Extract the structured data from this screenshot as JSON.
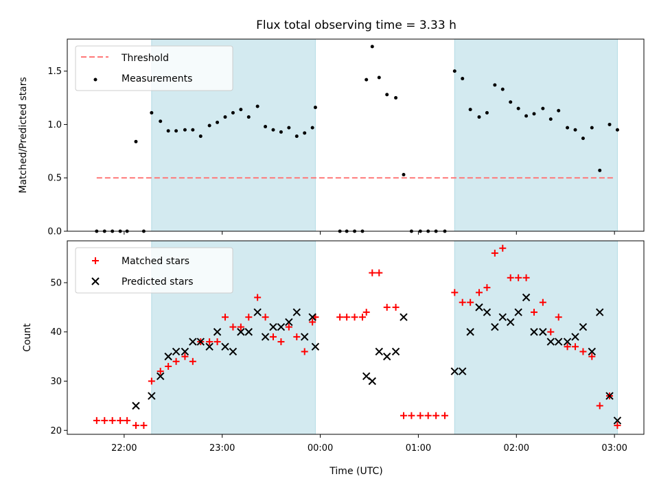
{
  "chart_data": {
    "title": "Flux total observing time = 3.33 h",
    "xlabel": "Time (UTC)",
    "x_unit": "hours (UTC; values past 24 are after midnight)",
    "x_ticks": [
      {
        "x": 22.0,
        "label": "22:00"
      },
      {
        "x": 23.0,
        "label": "23:00"
      },
      {
        "x": 24.0,
        "label": "00:00"
      },
      {
        "x": 25.0,
        "label": "01:00"
      },
      {
        "x": 26.0,
        "label": "02:00"
      },
      {
        "x": 27.0,
        "label": "03:00"
      }
    ],
    "xlim": [
      21.42,
      27.3
    ],
    "observing_windows": [
      [
        22.28,
        23.95
      ],
      [
        25.37,
        27.03
      ]
    ],
    "window_color": "#d3eaf0",
    "panels": [
      {
        "type": "scatter",
        "ylabel": "Matched/Predicted stars",
        "ylim": [
          0,
          1.8
        ],
        "yticks": [
          0.0,
          0.5,
          1.0,
          1.5
        ],
        "ytick_labels": [
          "0.0",
          "0.5",
          "1.0",
          "1.5"
        ],
        "legend_position": "top-left",
        "threshold": {
          "name": "Threshold",
          "y": 0.5,
          "x_range": [
            21.72,
            27.0
          ],
          "color": "#ff7777"
        },
        "series": [
          {
            "name": "Measurements",
            "color": "#000000",
            "marker": "dot",
            "points": [
              [
                21.72,
                0.0
              ],
              [
                21.8,
                0.0
              ],
              [
                21.88,
                0.0
              ],
              [
                21.96,
                0.0
              ],
              [
                22.03,
                0.0
              ],
              [
                22.12,
                0.84
              ],
              [
                22.2,
                0.0
              ],
              [
                22.28,
                1.11
              ],
              [
                22.37,
                1.03
              ],
              [
                22.45,
                0.94
              ],
              [
                22.53,
                0.94
              ],
              [
                22.62,
                0.95
              ],
              [
                22.7,
                0.95
              ],
              [
                22.78,
                0.89
              ],
              [
                22.87,
                0.99
              ],
              [
                22.95,
                1.02
              ],
              [
                23.03,
                1.07
              ],
              [
                23.11,
                1.11
              ],
              [
                23.19,
                1.14
              ],
              [
                23.27,
                1.07
              ],
              [
                23.36,
                1.17
              ],
              [
                23.44,
                0.98
              ],
              [
                23.52,
                0.95
              ],
              [
                23.6,
                0.93
              ],
              [
                23.68,
                0.97
              ],
              [
                23.76,
                0.89
              ],
              [
                23.84,
                0.92
              ],
              [
                23.92,
                0.97
              ],
              [
                23.95,
                1.16
              ],
              [
                24.2,
                0.0
              ],
              [
                24.27,
                0.0
              ],
              [
                24.35,
                0.0
              ],
              [
                24.43,
                0.0
              ],
              [
                24.47,
                1.42
              ],
              [
                24.53,
                1.73
              ],
              [
                24.6,
                1.44
              ],
              [
                24.68,
                1.28
              ],
              [
                24.77,
                1.25
              ],
              [
                24.85,
                0.53
              ],
              [
                24.93,
                0.0
              ],
              [
                25.02,
                0.0
              ],
              [
                25.1,
                0.0
              ],
              [
                25.18,
                0.0
              ],
              [
                25.27,
                0.0
              ],
              [
                25.37,
                1.5
              ],
              [
                25.45,
                1.43
              ],
              [
                25.53,
                1.14
              ],
              [
                25.62,
                1.07
              ],
              [
                25.7,
                1.11
              ],
              [
                25.78,
                1.37
              ],
              [
                25.86,
                1.33
              ],
              [
                25.94,
                1.21
              ],
              [
                26.02,
                1.15
              ],
              [
                26.1,
                1.08
              ],
              [
                26.18,
                1.1
              ],
              [
                26.27,
                1.15
              ],
              [
                26.35,
                1.05
              ],
              [
                26.43,
                1.13
              ],
              [
                26.52,
                0.97
              ],
              [
                26.6,
                0.95
              ],
              [
                26.68,
                0.87
              ],
              [
                26.77,
                0.97
              ],
              [
                26.85,
                0.57
              ],
              [
                26.95,
                1.0
              ],
              [
                27.03,
                0.95
              ]
            ]
          }
        ]
      },
      {
        "type": "scatter",
        "ylabel": "Count",
        "ylim": [
          19.2,
          58.5
        ],
        "yticks": [
          20,
          30,
          40,
          50
        ],
        "ytick_labels": [
          "20",
          "30",
          "40",
          "50"
        ],
        "legend_position": "top-left",
        "series": [
          {
            "name": "Matched stars",
            "color": "#ff0000",
            "marker": "plus",
            "points": [
              [
                21.72,
                22
              ],
              [
                21.8,
                22
              ],
              [
                21.88,
                22
              ],
              [
                21.96,
                22
              ],
              [
                22.03,
                22
              ],
              [
                22.12,
                21
              ],
              [
                22.2,
                21
              ],
              [
                22.28,
                30
              ],
              [
                22.37,
                32
              ],
              [
                22.45,
                33
              ],
              [
                22.53,
                34
              ],
              [
                22.62,
                35
              ],
              [
                22.7,
                34
              ],
              [
                22.78,
                38
              ],
              [
                22.87,
                38
              ],
              [
                22.95,
                38
              ],
              [
                23.03,
                43
              ],
              [
                23.11,
                41
              ],
              [
                23.19,
                41
              ],
              [
                23.27,
                43
              ],
              [
                23.36,
                47
              ],
              [
                23.44,
                43
              ],
              [
                23.52,
                39
              ],
              [
                23.6,
                38
              ],
              [
                23.68,
                41
              ],
              [
                23.76,
                39
              ],
              [
                23.84,
                36
              ],
              [
                23.92,
                42
              ],
              [
                23.95,
                43
              ],
              [
                24.2,
                43
              ],
              [
                24.27,
                43
              ],
              [
                24.35,
                43
              ],
              [
                24.43,
                43
              ],
              [
                24.47,
                44
              ],
              [
                24.53,
                52
              ],
              [
                24.6,
                52
              ],
              [
                24.68,
                45
              ],
              [
                24.77,
                45
              ],
              [
                24.85,
                23
              ],
              [
                24.93,
                23
              ],
              [
                25.02,
                23
              ],
              [
                25.1,
                23
              ],
              [
                25.18,
                23
              ],
              [
                25.27,
                23
              ],
              [
                25.37,
                48
              ],
              [
                25.45,
                46
              ],
              [
                25.53,
                46
              ],
              [
                25.62,
                48
              ],
              [
                25.7,
                49
              ],
              [
                25.78,
                56
              ],
              [
                25.86,
                57
              ],
              [
                25.94,
                51
              ],
              [
                26.02,
                51
              ],
              [
                26.1,
                51
              ],
              [
                26.18,
                44
              ],
              [
                26.27,
                46
              ],
              [
                26.35,
                40
              ],
              [
                26.43,
                43
              ],
              [
                26.52,
                37
              ],
              [
                26.6,
                37
              ],
              [
                26.68,
                36
              ],
              [
                26.77,
                35
              ],
              [
                26.85,
                25
              ],
              [
                26.95,
                27
              ],
              [
                27.03,
                21
              ]
            ]
          },
          {
            "name": "Predicted stars",
            "color": "#000000",
            "marker": "x",
            "points": [
              [
                22.12,
                25
              ],
              [
                22.28,
                27
              ],
              [
                22.37,
                31
              ],
              [
                22.45,
                35
              ],
              [
                22.53,
                36
              ],
              [
                22.62,
                36
              ],
              [
                22.7,
                38
              ],
              [
                22.78,
                38
              ],
              [
                22.87,
                37
              ],
              [
                22.95,
                40
              ],
              [
                23.03,
                37
              ],
              [
                23.11,
                36
              ],
              [
                23.19,
                40
              ],
              [
                23.27,
                40
              ],
              [
                23.36,
                44
              ],
              [
                23.44,
                39
              ],
              [
                23.52,
                41
              ],
              [
                23.6,
                41
              ],
              [
                23.68,
                42
              ],
              [
                23.76,
                44
              ],
              [
                23.84,
                39
              ],
              [
                23.92,
                43
              ],
              [
                23.95,
                37
              ],
              [
                24.47,
                31
              ],
              [
                24.53,
                30
              ],
              [
                24.6,
                36
              ],
              [
                24.68,
                35
              ],
              [
                24.77,
                36
              ],
              [
                24.85,
                43
              ],
              [
                25.37,
                32
              ],
              [
                25.45,
                32
              ],
              [
                25.53,
                40
              ],
              [
                25.62,
                45
              ],
              [
                25.7,
                44
              ],
              [
                25.78,
                41
              ],
              [
                25.86,
                43
              ],
              [
                25.94,
                42
              ],
              [
                26.02,
                44
              ],
              [
                26.1,
                47
              ],
              [
                26.18,
                40
              ],
              [
                26.27,
                40
              ],
              [
                26.35,
                38
              ],
              [
                26.43,
                38
              ],
              [
                26.52,
                38
              ],
              [
                26.6,
                39
              ],
              [
                26.68,
                41
              ],
              [
                26.77,
                36
              ],
              [
                26.85,
                44
              ],
              [
                26.95,
                27
              ],
              [
                27.03,
                22
              ]
            ]
          }
        ]
      }
    ]
  }
}
